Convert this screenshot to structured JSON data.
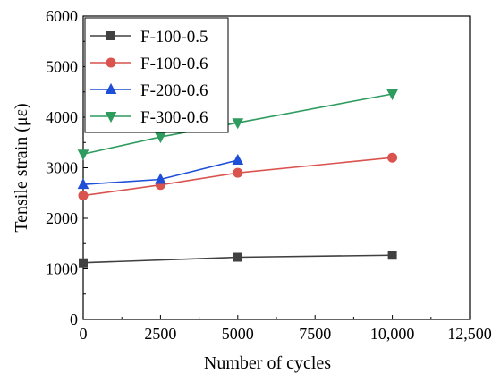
{
  "chart_data": {
    "type": "line",
    "title": "",
    "xlabel": "Number of cycles",
    "ylabel": "Tensile strain (με)",
    "xlim": [
      0,
      12500
    ],
    "ylim": [
      0,
      6000
    ],
    "xticks": [
      0,
      2500,
      5000,
      7500,
      10000,
      12500
    ],
    "yticks": [
      0,
      1000,
      2000,
      3000,
      4000,
      5000,
      6000
    ],
    "xtick_labels": [
      "0",
      "2500",
      "5000",
      "7500",
      "10,000",
      "12,500"
    ],
    "ytick_labels": [
      "0",
      "1000",
      "2000",
      "3000",
      "4000",
      "5000",
      "6000"
    ],
    "grid": false,
    "legend_position": "top-left",
    "series": [
      {
        "name": "F-100-0.5",
        "color": "#404040",
        "marker": "square",
        "x": [
          0,
          5000,
          10000
        ],
        "y": [
          1120,
          1230,
          1270
        ]
      },
      {
        "name": "F-100-0.6",
        "color": "#d9534f",
        "marker": "circle",
        "x": [
          0,
          2500,
          5000,
          10000
        ],
        "y": [
          2450,
          2660,
          2900,
          3200
        ]
      },
      {
        "name": "F-200-0.6",
        "color": "#1f4fd6",
        "marker": "triangle-up",
        "x": [
          0,
          2500,
          5000
        ],
        "y": [
          2670,
          2770,
          3150
        ]
      },
      {
        "name": "F-300-0.6",
        "color": "#2e9b5f",
        "marker": "triangle-down",
        "x": [
          0,
          2500,
          5000,
          10000
        ],
        "y": [
          3270,
          3610,
          3890,
          4460
        ]
      }
    ]
  }
}
